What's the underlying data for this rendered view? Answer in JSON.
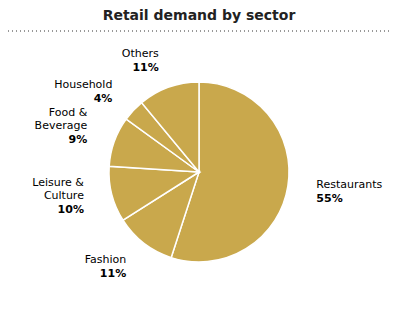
{
  "chart_data": {
    "type": "pie",
    "title": "Retail demand by sector",
    "categories": [
      "Restaurants",
      "Fashion",
      "Leisure &\nCulture",
      "Food &\nBeverage",
      "Household",
      "Others"
    ],
    "values": [
      55,
      11,
      10,
      9,
      4,
      11
    ],
    "value_labels": [
      "55%",
      "11%",
      "10%",
      "9%",
      "4%",
      "11%"
    ],
    "color": "#C9A84C",
    "data_labels": true
  }
}
